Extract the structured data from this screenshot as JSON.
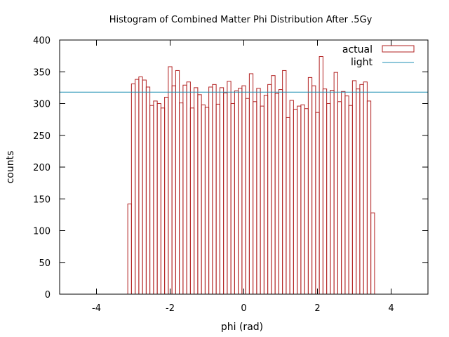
{
  "chart_data": {
    "type": "bar",
    "title": "Histogram of Combined Matter Phi Distribution After .5Gy",
    "xlabel": "phi (rad)",
    "ylabel": "counts",
    "xlim": [
      -5,
      5
    ],
    "ylim": [
      0,
      400
    ],
    "xticks": [
      -4,
      -2,
      0,
      2,
      4
    ],
    "yticks": [
      0,
      50,
      100,
      150,
      200,
      250,
      300,
      350,
      400
    ],
    "grid": false,
    "legend_position": "top-right",
    "bin_width": 0.1,
    "first_bin_left": -3.15,
    "series": [
      {
        "name": "actual",
        "style": "bar-outline",
        "color": "#b22222",
        "values": [
          142,
          331,
          338,
          342,
          337,
          326,
          297,
          304,
          300,
          293,
          310,
          358,
          328,
          352,
          301,
          329,
          334,
          293,
          325,
          314,
          298,
          294,
          326,
          330,
          299,
          325,
          317,
          335,
          300,
          320,
          324,
          328,
          308,
          347,
          303,
          324,
          296,
          313,
          330,
          344,
          316,
          322,
          352,
          278,
          305,
          291,
          296,
          298,
          292,
          341,
          328,
          286,
          374,
          323,
          300,
          321,
          349,
          303,
          319,
          312,
          297,
          336,
          323,
          330,
          334,
          304,
          128
        ]
      },
      {
        "name": "light",
        "style": "line",
        "color": "#1f8fb4",
        "y": 318
      }
    ]
  }
}
